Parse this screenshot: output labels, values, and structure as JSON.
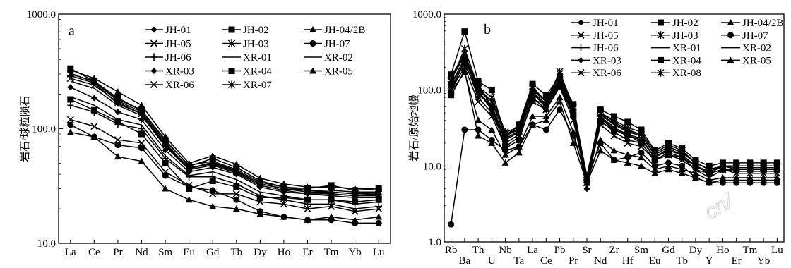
{
  "chart_data": [
    {
      "type": "line",
      "panel_label": "a",
      "ylabel": "岩石/球粒陨石",
      "yscale": "log",
      "ylim": [
        10,
        1000
      ],
      "yticks": [
        "10.0",
        "100.0",
        "1000.0"
      ],
      "categories": [
        "La",
        "Ce",
        "Pr",
        "Nd",
        "Sm",
        "Eu",
        "Gd",
        "Tb",
        "Dy",
        "Ho",
        "Er",
        "Tm",
        "Yb",
        "Lu"
      ],
      "legend": {
        "placement": "top-right",
        "columns": 3
      },
      "series": [
        {
          "name": "JH-01",
          "marker": "diamond",
          "values": [
            230,
            185,
            140,
            120,
            65,
            42,
            46,
            40,
            31,
            28,
            27,
            26,
            25,
            25
          ]
        },
        {
          "name": "JH-02",
          "marker": "square",
          "values": [
            335,
            260,
            185,
            145,
            80,
            47,
            55,
            46,
            35,
            31,
            30,
            32,
            29,
            30
          ]
        },
        {
          "name": "JH-04/2B",
          "marker": "triangle",
          "values": [
            325,
            275,
            210,
            160,
            85,
            50,
            58,
            49,
            37,
            33,
            31,
            31,
            30,
            30
          ]
        },
        {
          "name": "JH-05",
          "marker": "x",
          "values": [
            120,
            105,
            80,
            75,
            42,
            32,
            27,
            27,
            23,
            22,
            20,
            21,
            19,
            20
          ]
        },
        {
          "name": "JH-03",
          "marker": "star",
          "values": [
            305,
            255,
            175,
            140,
            75,
            45,
            51,
            43,
            33,
            30,
            28,
            28,
            27,
            27
          ]
        },
        {
          "name": "JH-07",
          "marker": "circle",
          "values": [
            108,
            85,
            72,
            68,
            39,
            31,
            29,
            24,
            19,
            17,
            16,
            16,
            15,
            15
          ]
        },
        {
          "name": "JH-06",
          "marker": "plus",
          "values": [
            160,
            140,
            110,
            100,
            55,
            38,
            38,
            33,
            26,
            24,
            22,
            22,
            20,
            21
          ]
        },
        {
          "name": "XR-01",
          "marker": "dash",
          "values": [
            190,
            160,
            120,
            108,
            58,
            39,
            42,
            36,
            28,
            26,
            24,
            24,
            22,
            23
          ]
        },
        {
          "name": "XR-02",
          "marker": "dash",
          "values": [
            260,
            225,
            160,
            130,
            70,
            44,
            48,
            41,
            32,
            29,
            27,
            27,
            26,
            26
          ]
        },
        {
          "name": "XR-03",
          "marker": "diamond",
          "values": [
            290,
            250,
            165,
            135,
            72,
            45,
            50,
            42,
            33,
            30,
            28,
            27,
            26,
            27
          ]
        },
        {
          "name": "XR-04",
          "marker": "square",
          "values": [
            180,
            145,
            115,
            90,
            50,
            30,
            35,
            31,
            25,
            25,
            24,
            24,
            23,
            24
          ]
        },
        {
          "name": "XR-05",
          "marker": "triangle",
          "values": [
            93,
            85,
            57,
            52,
            30,
            24,
            21,
            20,
            18,
            17,
            16,
            17,
            16,
            17
          ]
        },
        {
          "name": "XR-06",
          "marker": "x",
          "values": [
            275,
            240,
            170,
            135,
            73,
            46,
            49,
            42,
            33,
            30,
            29,
            28,
            27,
            28
          ]
        },
        {
          "name": "XR-07",
          "marker": "star",
          "values": [
            300,
            260,
            180,
            145,
            78,
            48,
            52,
            44,
            34,
            31,
            29,
            29,
            28,
            28
          ]
        }
      ]
    },
    {
      "type": "line",
      "panel_label": "b",
      "ylabel": "岩石/原始地幔",
      "yscale": "log",
      "ylim": [
        1,
        1000
      ],
      "yticks": [
        "1.0",
        "10.0",
        "100.0",
        "1000.0"
      ],
      "categories": [
        "Rb",
        "Ba",
        "Th",
        "U",
        "Nb",
        "Ta",
        "La",
        "Ce",
        "Pb",
        "Pr",
        "Sr",
        "Nd",
        "Zr",
        "Hf",
        "Sm",
        "Eu",
        "Gd",
        "Tb",
        "Dy",
        "Y",
        "Ho",
        "Er",
        "Tm",
        "Yb",
        "Lu"
      ],
      "legend": {
        "placement": "top-right",
        "columns": 3
      },
      "series": [
        {
          "name": "JH-01",
          "marker": "diamond",
          "values": [
            110,
            220,
            95,
            55,
            22,
            28,
            95,
            60,
            130,
            50,
            5,
            45,
            30,
            25,
            22,
            13,
            17,
            14,
            10,
            8,
            10,
            9,
            9,
            9,
            9
          ]
        },
        {
          "name": "JH-02",
          "marker": "square",
          "values": [
            160,
            590,
            130,
            100,
            25,
            35,
            120,
            85,
            150,
            65,
            6.5,
            55,
            45,
            38,
            30,
            16,
            20,
            17,
            12,
            10,
            11,
            11,
            11,
            11,
            11
          ]
        },
        {
          "name": "JH-04/2B",
          "marker": "triangle",
          "values": [
            85,
            180,
            25,
            20,
            11,
            15,
            35,
            40,
            70,
            20,
            6,
            16,
            12,
            11,
            10,
            8,
            9,
            8,
            7,
            6,
            6.5,
            6.5,
            6.5,
            6.5,
            6.5
          ]
        },
        {
          "name": "JH-05",
          "marker": "x",
          "values": [
            100,
            200,
            70,
            45,
            18,
            24,
            70,
            55,
            110,
            40,
            6,
            35,
            25,
            20,
            18,
            12,
            14,
            12,
            9,
            7,
            9,
            8,
            8,
            8,
            8
          ]
        },
        {
          "name": "JH-03",
          "marker": "star",
          "values": [
            130,
            350,
            110,
            80,
            28,
            32,
            110,
            70,
            175,
            60,
            7,
            50,
            40,
            32,
            28,
            15,
            19,
            16,
            11,
            9,
            10,
            10,
            10,
            10,
            10
          ]
        },
        {
          "name": "JH-07",
          "marker": "circle",
          "values": [
            1.7,
            30,
            30,
            22,
            16,
            18,
            35,
            30,
            55,
            25,
            7,
            20,
            12,
            13,
            15,
            10,
            11,
            10,
            7,
            6,
            6,
            6,
            6,
            6,
            6
          ]
        },
        {
          "name": "JH-06",
          "marker": "plus",
          "values": [
            120,
            230,
            90,
            60,
            22,
            28,
            90,
            60,
            125,
            50,
            7,
            42,
            30,
            25,
            22,
            13,
            16,
            14,
            10,
            8,
            9,
            9,
            9,
            9,
            9
          ]
        },
        {
          "name": "XR-01",
          "marker": "dash",
          "values": [
            140,
            280,
            100,
            70,
            25,
            30,
            100,
            70,
            140,
            55,
            7,
            47,
            35,
            28,
            25,
            14,
            18,
            15,
            11,
            9,
            10,
            10,
            10,
            10,
            10
          ]
        },
        {
          "name": "XR-02",
          "marker": "dash",
          "values": [
            150,
            300,
            105,
            72,
            26,
            31,
            105,
            72,
            145,
            57,
            7.5,
            48,
            36,
            29,
            26,
            14,
            18,
            15,
            11,
            9,
            10,
            10,
            10,
            10,
            10
          ]
        },
        {
          "name": "XR-03",
          "marker": "diamond",
          "values": [
            100,
            240,
            80,
            50,
            20,
            26,
            80,
            55,
            120,
            45,
            6,
            40,
            28,
            22,
            20,
            12,
            15,
            13,
            9,
            8,
            9,
            8.5,
            8.5,
            8.5,
            8.5
          ]
        },
        {
          "name": "XR-04",
          "marker": "square",
          "values": [
            90,
            260,
            120,
            60,
            17,
            22,
            75,
            65,
            110,
            48,
            6.5,
            38,
            30,
            26,
            20,
            12,
            14,
            13,
            10,
            8,
            9,
            9,
            9,
            9,
            9
          ]
        },
        {
          "name": "XR-05",
          "marker": "triangle",
          "values": [
            95,
            170,
            40,
            30,
            14,
            18,
            45,
            45,
            80,
            28,
            6,
            22,
            16,
            14,
            13,
            9,
            10,
            9,
            8,
            6.5,
            7,
            7,
            7,
            7,
            7
          ]
        },
        {
          "name": "XR-06",
          "marker": "x",
          "values": [
            120,
            260,
            95,
            62,
            23,
            29,
            95,
            65,
            135,
            52,
            6.5,
            45,
            32,
            26,
            23,
            13,
            17,
            14,
            10,
            8.5,
            10,
            9.5,
            9.5,
            9.5,
            9.5
          ]
        },
        {
          "name": "XR-08",
          "marker": "star",
          "values": [
            135,
            300,
            105,
            70,
            26,
            31,
            105,
            70,
            165,
            58,
            7,
            50,
            38,
            30,
            26,
            14,
            18,
            15,
            11,
            9,
            10,
            10,
            10,
            10,
            10
          ]
        }
      ]
    }
  ]
}
